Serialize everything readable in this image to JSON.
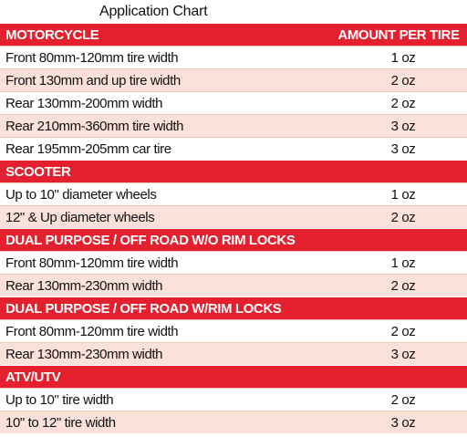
{
  "title": "Application  Chart",
  "sections": [
    {
      "heading": "MOTORCYCLE",
      "column_heading": "AMOUNT PER TIRE",
      "rows": [
        {
          "label": "Front 80mm-120mm tire width",
          "amount": "1 oz"
        },
        {
          "label": "Front 130mm and up tire width",
          "amount": "2 oz"
        },
        {
          "label": "Rear 130mm-200mm width",
          "amount": "2 oz"
        },
        {
          "label": "Rear 210mm-360mm tire width",
          "amount": "3 oz"
        },
        {
          "label": "Rear 195mm-205mm car tire",
          "amount": "3 oz"
        }
      ]
    },
    {
      "heading": "SCOOTER",
      "rows": [
        {
          "label": "Up to 10\" diameter wheels",
          "amount": "1 oz"
        },
        {
          "label": "12\" & Up diameter wheels",
          "amount": "2 oz"
        }
      ]
    },
    {
      "heading": "DUAL  PURPOSE / OFF ROAD W/O RIM LOCKS",
      "rows": [
        {
          "label": "Front 80mm-120mm tire width",
          "amount": "1 oz"
        },
        {
          "label": "Rear 130mm-230mm width",
          "amount": "2 oz"
        }
      ]
    },
    {
      "heading": "DUAL PURPOSE / OFF ROAD W/RIM  LOCKS",
      "rows": [
        {
          "label": "Front 80mm-120mm tire width",
          "amount": "2 oz"
        },
        {
          "label": "Rear 130mm-230mm width",
          "amount": "3 oz"
        }
      ]
    },
    {
      "heading": "ATV/UTV",
      "rows": [
        {
          "label": "Up to 10\" tire width",
          "amount": "2 oz"
        },
        {
          "label": "10\" to 12\" tire width",
          "amount": "3 oz"
        }
      ]
    }
  ],
  "colors": {
    "header_red": "#e4202f",
    "row_tint": "#fbe1d9"
  }
}
